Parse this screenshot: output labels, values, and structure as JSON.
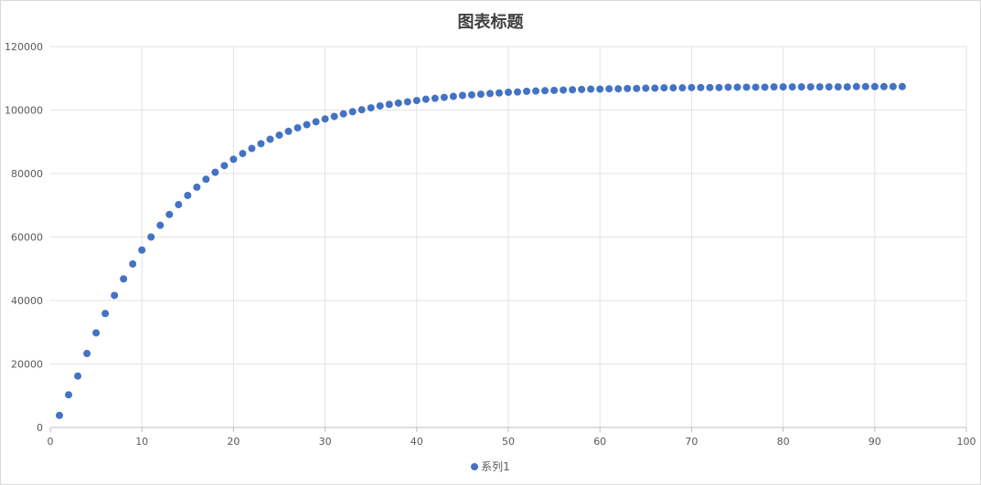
{
  "chart_data": {
    "type": "scatter",
    "title": "图表标题",
    "xlabel": "",
    "ylabel": "",
    "xlim": [
      0,
      100
    ],
    "ylim": [
      0,
      120000
    ],
    "xticks": [
      0,
      10,
      20,
      30,
      40,
      50,
      60,
      70,
      80,
      90,
      100
    ],
    "yticks": [
      0,
      20000,
      40000,
      60000,
      80000,
      100000,
      120000
    ],
    "grid": true,
    "legend_position": "bottom",
    "series": [
      {
        "name": "系列1",
        "color": "#4472c4",
        "x": [
          1,
          2,
          3,
          4,
          5,
          6,
          7,
          8,
          9,
          10,
          11,
          12,
          13,
          14,
          15,
          16,
          17,
          18,
          19,
          20,
          21,
          22,
          23,
          24,
          25,
          26,
          27,
          28,
          29,
          30,
          31,
          32,
          33,
          34,
          35,
          36,
          37,
          38,
          39,
          40,
          41,
          42,
          43,
          44,
          45,
          46,
          47,
          48,
          49,
          50,
          51,
          52,
          53,
          54,
          55,
          56,
          57,
          58,
          59,
          60,
          61,
          62,
          63,
          64,
          65,
          66,
          67,
          68,
          69,
          70,
          71,
          72,
          73,
          74,
          75,
          76,
          77,
          78,
          79,
          80,
          81,
          82,
          83,
          84,
          85,
          86,
          87,
          88,
          89,
          90,
          91,
          92,
          93
        ],
        "y": [
          3800,
          10300,
          16200,
          23300,
          29800,
          35900,
          41600,
          46800,
          51500,
          55900,
          60000,
          63700,
          67100,
          70200,
          73100,
          75700,
          78200,
          80400,
          82500,
          84500,
          86300,
          87900,
          89400,
          90800,
          92100,
          93300,
          94400,
          95400,
          96300,
          97200,
          98000,
          98800,
          99500,
          100100,
          100700,
          101300,
          101800,
          102200,
          102600,
          103000,
          103400,
          103700,
          104000,
          104300,
          104600,
          104800,
          105000,
          105200,
          105400,
          105600,
          105700,
          105900,
          106000,
          106100,
          106200,
          106300,
          106400,
          106500,
          106600,
          106600,
          106700,
          106700,
          106800,
          106800,
          106900,
          106900,
          107000,
          107000,
          107000,
          107100,
          107100,
          107100,
          107100,
          107200,
          107200,
          107200,
          107200,
          107200,
          107300,
          107300,
          107300,
          107300,
          107300,
          107300,
          107300,
          107300,
          107300,
          107400,
          107400,
          107400,
          107400,
          107400,
          107400
        ]
      }
    ]
  }
}
